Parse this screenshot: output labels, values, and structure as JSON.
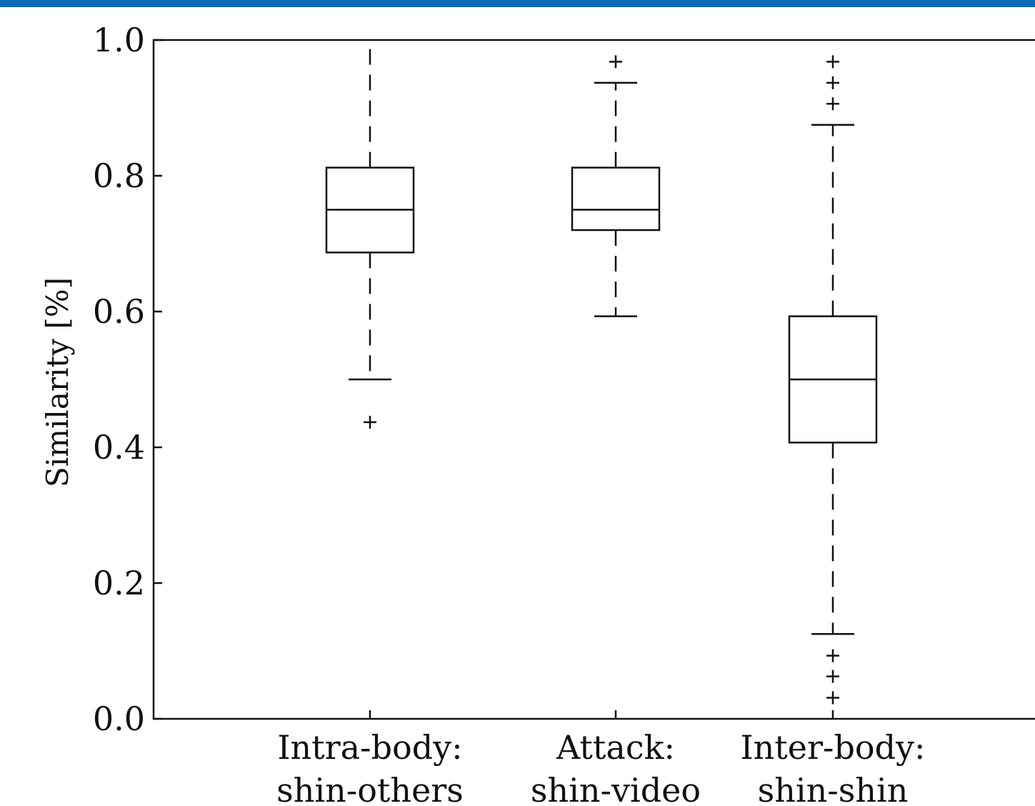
{
  "theme": {
    "top_bar_color": "#0b6bb5",
    "ink": "#111111"
  },
  "chart_data": {
    "type": "box",
    "title": "",
    "xlabel": "",
    "ylabel": "Similarity [%]",
    "ylim": [
      0.0,
      1.0
    ],
    "yticks": [
      "0.0",
      "0.2",
      "0.4",
      "0.6",
      "0.8",
      "1.0"
    ],
    "grid": false,
    "categories": [
      [
        "Intra-body:",
        "shin-others"
      ],
      [
        "Attack:",
        "shin-video"
      ],
      [
        "Inter-body:",
        "shin-shin"
      ]
    ],
    "boxes": [
      {
        "whisker_low": 0.5,
        "q1": 0.687,
        "median": 0.75,
        "q3": 0.812,
        "whisker_high": 1.0,
        "outliers": [
          0.437
        ]
      },
      {
        "whisker_low": 0.593,
        "q1": 0.72,
        "median": 0.75,
        "q3": 0.812,
        "whisker_high": 0.937,
        "outliers": [
          0.968
        ]
      },
      {
        "whisker_low": 0.125,
        "q1": 0.407,
        "median": 0.5,
        "q3": 0.593,
        "whisker_high": 0.875,
        "outliers": [
          0.031,
          0.0625,
          0.093,
          0.906,
          0.937,
          0.968
        ]
      }
    ]
  }
}
